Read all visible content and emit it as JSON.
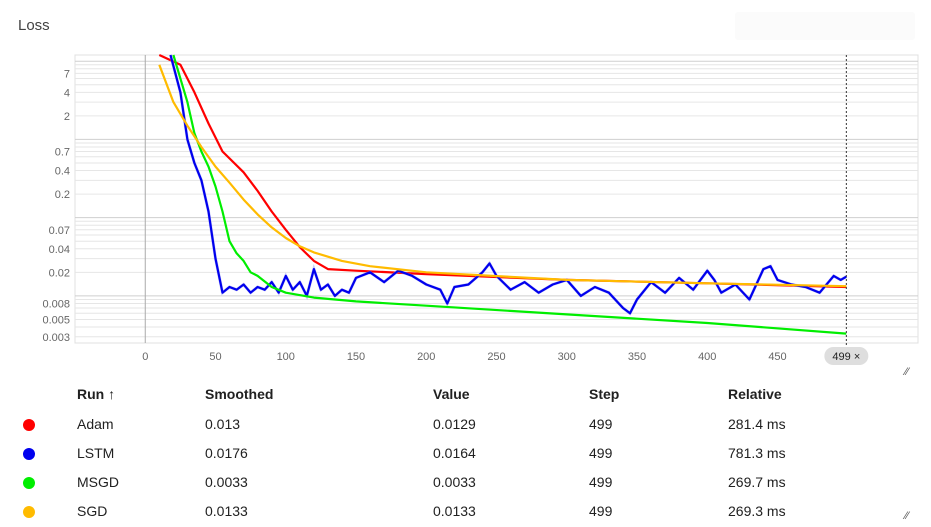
{
  "title": "Loss",
  "chart_data": {
    "type": "line",
    "x_ticks": [
      "0",
      "50",
      "100",
      "150",
      "200",
      "250",
      "300",
      "350",
      "400",
      "450"
    ],
    "y_ticks": [
      "7",
      "4",
      "2",
      "0.7",
      "0.4",
      "0.2",
      "0.07",
      "0.04",
      "0.02",
      "0.008",
      "0.005",
      "0.003"
    ],
    "y_scale": "log",
    "xlim": [
      -50,
      550
    ],
    "ylim": [
      0.0025,
      12
    ],
    "cursor_step": 499,
    "cursor_label": "499 ×",
    "series": [
      {
        "name": "Adam",
        "color": "#ff0000",
        "x": [
          10,
          25,
          35,
          45,
          55,
          70,
          80,
          90,
          100,
          110,
          120,
          130,
          150,
          200,
          300,
          400,
          499
        ],
        "y": [
          12,
          9,
          4,
          1.6,
          0.7,
          0.38,
          0.22,
          0.12,
          0.07,
          0.042,
          0.028,
          0.022,
          0.021,
          0.019,
          0.016,
          0.0145,
          0.013
        ]
      },
      {
        "name": "LSTM",
        "color": "#0000ee",
        "x": [
          18,
          25,
          30,
          35,
          40,
          45,
          50,
          55,
          60,
          65,
          70,
          75,
          80,
          85,
          90,
          95,
          100,
          105,
          110,
          115,
          120,
          125,
          130,
          135,
          140,
          145,
          150,
          160,
          170,
          180,
          190,
          200,
          210,
          215,
          220,
          230,
          240,
          245,
          250,
          260,
          270,
          280,
          290,
          300,
          310,
          320,
          330,
          340,
          345,
          350,
          360,
          370,
          380,
          390,
          400,
          405,
          410,
          420,
          430,
          440,
          445,
          450,
          460,
          470,
          480,
          490,
          495,
          499
        ],
        "y": [
          12,
          4,
          1.0,
          0.5,
          0.3,
          0.12,
          0.03,
          0.011,
          0.013,
          0.012,
          0.014,
          0.011,
          0.013,
          0.012,
          0.015,
          0.011,
          0.018,
          0.012,
          0.015,
          0.01,
          0.022,
          0.012,
          0.014,
          0.01,
          0.012,
          0.011,
          0.017,
          0.02,
          0.015,
          0.021,
          0.018,
          0.014,
          0.012,
          0.008,
          0.013,
          0.014,
          0.02,
          0.026,
          0.018,
          0.012,
          0.015,
          0.011,
          0.014,
          0.016,
          0.01,
          0.013,
          0.011,
          0.007,
          0.006,
          0.009,
          0.015,
          0.011,
          0.017,
          0.012,
          0.021,
          0.016,
          0.011,
          0.014,
          0.009,
          0.022,
          0.024,
          0.016,
          0.014,
          0.013,
          0.011,
          0.018,
          0.016,
          0.0176
        ]
      },
      {
        "name": "MSGD",
        "color": "#00ee00",
        "x": [
          20,
          25,
          30,
          35,
          40,
          45,
          50,
          55,
          60,
          65,
          70,
          75,
          80,
          90,
          100,
          120,
          150,
          200,
          300,
          400,
          499
        ],
        "y": [
          12,
          6,
          3,
          1.2,
          0.7,
          0.45,
          0.25,
          0.12,
          0.05,
          0.035,
          0.028,
          0.02,
          0.018,
          0.013,
          0.011,
          0.0095,
          0.0085,
          0.0075,
          0.0058,
          0.0045,
          0.0033
        ]
      },
      {
        "name": "SGD",
        "color": "#ffbb00",
        "x": [
          10,
          20,
          30,
          40,
          50,
          60,
          70,
          80,
          90,
          100,
          110,
          120,
          140,
          160,
          200,
          300,
          400,
          499
        ],
        "y": [
          9,
          3,
          1.5,
          0.8,
          0.45,
          0.28,
          0.17,
          0.11,
          0.075,
          0.055,
          0.043,
          0.036,
          0.028,
          0.024,
          0.02,
          0.016,
          0.0145,
          0.0133
        ]
      }
    ]
  },
  "table": {
    "headers": {
      "run": "Run ↑",
      "smoothed": "Smoothed",
      "value": "Value",
      "step": "Step",
      "relative": "Relative"
    },
    "rows": [
      {
        "run": "Adam",
        "color": "#ff0000",
        "smoothed": "0.013",
        "value": "0.0129",
        "step": "499",
        "relative": "281.4 ms"
      },
      {
        "run": "LSTM",
        "color": "#0000ee",
        "smoothed": "0.0176",
        "value": "0.0164",
        "step": "499",
        "relative": "781.3 ms"
      },
      {
        "run": "MSGD",
        "color": "#00ee00",
        "smoothed": "0.0033",
        "value": "0.0033",
        "step": "499",
        "relative": "269.7 ms"
      },
      {
        "run": "SGD",
        "color": "#ffbb00",
        "smoothed": "0.0133",
        "value": "0.0133",
        "step": "499",
        "relative": "269.3 ms"
      }
    ]
  }
}
